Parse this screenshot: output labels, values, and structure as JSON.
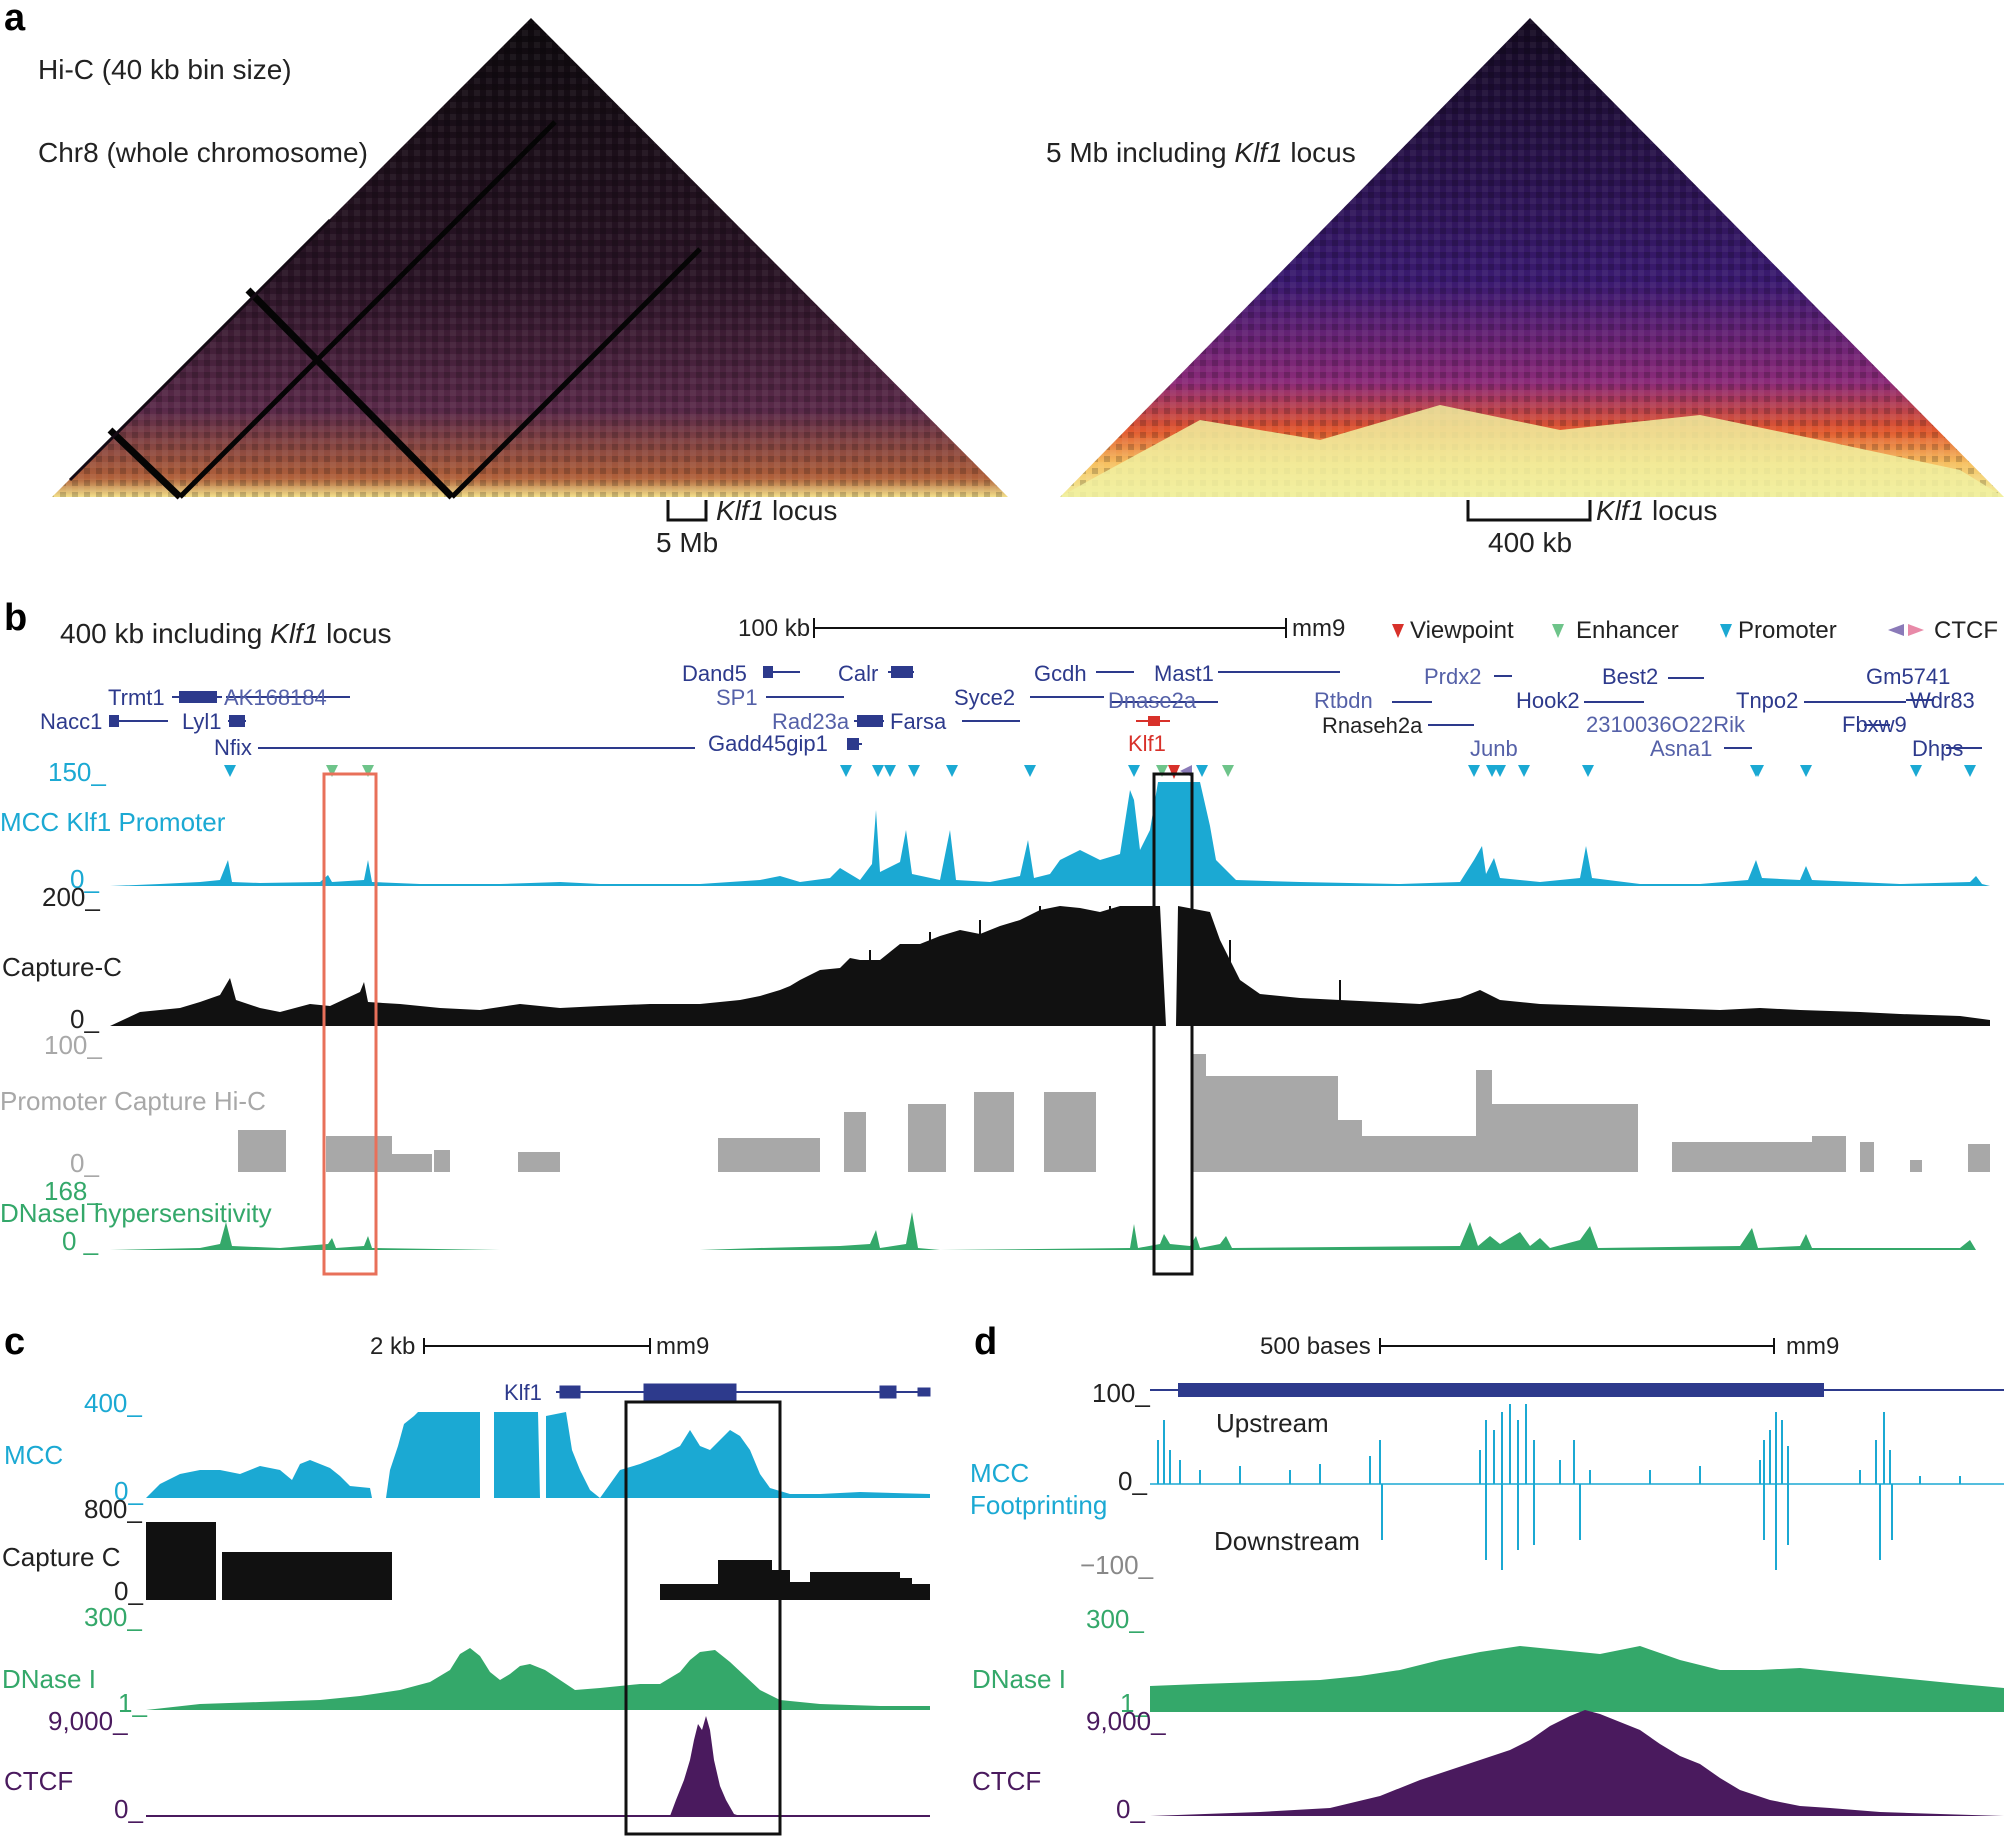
{
  "panels": {
    "a": {
      "label": "a",
      "left_title_1": "Hi-C (40 kb bin size)",
      "left_title_2": "Chr8 (whole chromosome)",
      "right_title_pre": "5 Mb including ",
      "right_title_italic": "Klf1",
      "right_title_post": " locus",
      "left_locus_italic": "Klf1",
      "left_locus_post": " locus",
      "left_scale": "5 Mb",
      "right_locus_italic": "Klf1",
      "right_locus_post": " locus",
      "right_scale": "400 kb"
    },
    "b": {
      "label": "b",
      "title_pre": "400 kb including ",
      "title_italic": "Klf1",
      "title_post": " locus",
      "scale_left": "100 kb",
      "scale_right": "mm9",
      "legend": {
        "viewpoint": "Viewpoint",
        "enhancer": "Enhancer",
        "promoter": "Promoter",
        "ctcf": "CTCF"
      },
      "genes": [
        "Trmt1",
        "AK168184",
        "Nacc1",
        "Lyl1",
        "Nfix",
        "Dand5",
        "SP1",
        "Gadd45gip1",
        "Calr",
        "Rad23a",
        "Farsa",
        "Syce2",
        "Gcdh",
        "Dnase2a",
        "Mast1",
        "Klf1",
        "Rtbdn",
        "Rnaseh2a",
        "Prdx2",
        "Junb",
        "Hook2",
        "Best2",
        "2310036O22Rik",
        "Asna1",
        "Tnpo2",
        "Gm5741",
        "Wdr83",
        "Fbxw9",
        "Dhps"
      ],
      "tracks": {
        "mcc": {
          "name": "MCC Klf1 Promoter",
          "max": "150_",
          "min": "0_"
        },
        "capture": {
          "name": "Capture-C",
          "max": "200_",
          "min": "0_"
        },
        "pchic": {
          "name": "Promoter Capture Hi-C",
          "max": "100_",
          "min": "0_"
        },
        "dnase": {
          "name": "DNaseI hypersensitivity",
          "max": "168_",
          "min": "0 _"
        }
      }
    },
    "c": {
      "label": "c",
      "scale_left": "2 kb",
      "scale_right": "mm9",
      "gene": "Klf1",
      "tracks": {
        "mcc": {
          "name": "MCC",
          "max": "400_",
          "min": "0_"
        },
        "capture": {
          "name": "Capture C",
          "max": "800_",
          "min": "0_"
        },
        "dnase": {
          "name": "DNase I",
          "max": "300_",
          "min": "1_"
        },
        "ctcf": {
          "name": "CTCF",
          "max": "9,000_",
          "min": "0_"
        }
      }
    },
    "d": {
      "label": "d",
      "scale_left": "500 bases",
      "scale_right": "mm9",
      "upstream": "Upstream",
      "downstream": "Downstream",
      "tracks": {
        "mcc": {
          "name_1": "MCC",
          "name_2": "Footprinting",
          "max": "100_",
          "mid": "0_",
          "min": "−100_"
        },
        "dnase": {
          "name": "DNase I",
          "max": "300_",
          "min": "1_"
        },
        "ctcf": {
          "name": "CTCF",
          "max": "9,000_",
          "min": "0_"
        }
      }
    }
  },
  "colors": {
    "mcc": "#1ba9d3",
    "capture": "#111111",
    "pchic": "#a8a8a8",
    "dnase": "#34a86a",
    "ctcf": "#4a1a5e",
    "gene": "#2d3a8c",
    "viewpoint": "#d8312a",
    "enhancer": "#6ec48a",
    "promoter": "#1ba9d3",
    "red_box": "#e8705a"
  }
}
